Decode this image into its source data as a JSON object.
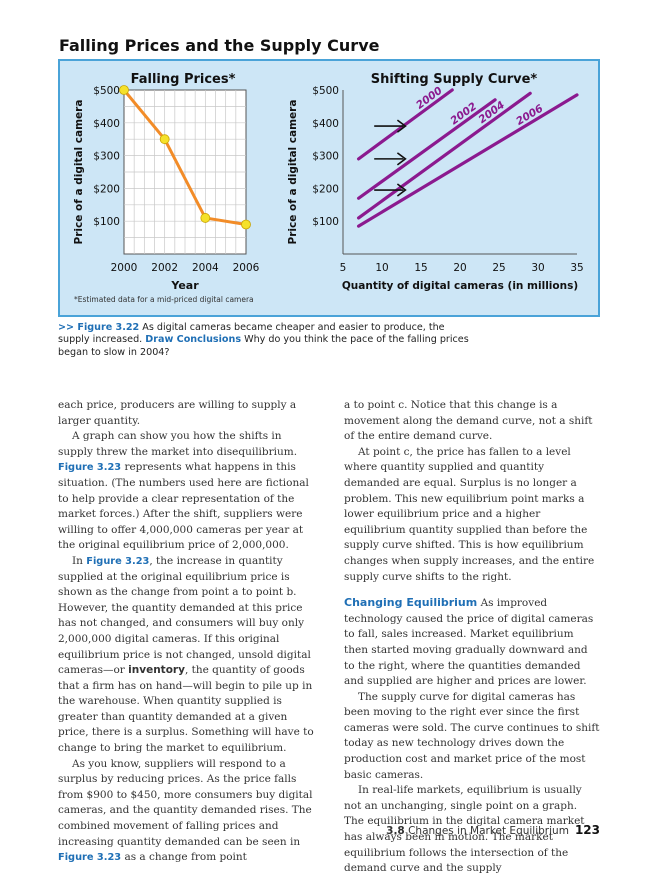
{
  "figure": {
    "title": "Falling Prices and the Supply Curve",
    "note": "*Estimated data for a mid-priced digital camera"
  },
  "chart_data": [
    {
      "type": "line",
      "title": "Falling Prices*",
      "xlabel": "Year",
      "ylabel": "Price of a digital camera",
      "x": [
        2000,
        2002,
        2004,
        2006
      ],
      "x_tick_labels": [
        "2000",
        "2002",
        "2004",
        "2006"
      ],
      "y_tick_labels": [
        "$500",
        "$400",
        "$300",
        "$200",
        "$100"
      ],
      "xlim": [
        2000,
        2006
      ],
      "ylim": [
        0,
        500
      ],
      "grid": true,
      "series": [
        {
          "x": [
            2000,
            2002,
            2004,
            2006
          ],
          "values": [
            500,
            350,
            110,
            90
          ]
        }
      ],
      "colors": {
        "line": "#f28c28",
        "marker": "#f5e12a"
      }
    },
    {
      "type": "line",
      "title": "Shifting Supply Curve*",
      "xlabel": "Quantity of digital cameras (in millions)",
      "ylabel": "Price of a digital camera",
      "x_tick_labels": [
        "5",
        "10",
        "15",
        "20",
        "25",
        "30",
        "35"
      ],
      "y_tick_labels": [
        "$500",
        "$400",
        "$300",
        "$200",
        "$100"
      ],
      "xlim": [
        5,
        35
      ],
      "ylim": [
        0,
        500
      ],
      "grid": false,
      "series": [
        {
          "name": "2000",
          "x": [
            7,
            19
          ],
          "values": [
            290,
            500
          ]
        },
        {
          "name": "2002",
          "x": [
            7,
            24.5
          ],
          "values": [
            170,
            470
          ]
        },
        {
          "name": "2004",
          "x": [
            7,
            29
          ],
          "values": [
            110,
            490
          ]
        },
        {
          "name": "2006",
          "x": [
            7,
            35
          ],
          "values": [
            85,
            485
          ]
        }
      ],
      "arrows": [
        {
          "y": 390,
          "x_from": 9,
          "x_to": 13
        },
        {
          "y": 290,
          "x_from": 9,
          "x_to": 13
        },
        {
          "y": 195,
          "x_from": 9,
          "x_to": 13
        }
      ],
      "colors": {
        "line": "#8b1a8f",
        "arrow": "#111111"
      }
    }
  ],
  "caption": {
    "prefix": ">> ",
    "figref": "Figure 3.22",
    "text1": " As digital cameras became cheaper and easier to produce, the supply increased. ",
    "dc_label": "Draw Conclusions",
    "text2": "  Why do you think the pace of the falling prices began to slow in 2004?"
  },
  "left": {
    "p1": "each price, producers are willing to supply a larger quantity.",
    "p2a": "A graph can show you how the shifts in supply threw the market into disequilibrium. ",
    "p2ref": "Figure 3.23",
    "p2b": " represents what happens in this situation. (The numbers used here are fictional to help provide a clear representation of the market forces.) After the shift, suppliers were willing to offer 4,000,000 cameras per year at the original equilibrium price of 2,000,000.",
    "p3a": "In ",
    "p3ref": "Figure 3.23",
    "p3b": ", the increase in quantity supplied at the original equilibrium price is shown as the change from point a to point b. However, the quantity demanded at this price has not changed, and consumers will buy only 2,000,000 digital cameras. If this original equilibrium price is not changed, unsold digital cameras—or ",
    "p3term": "inventory",
    "p3c": ", the quantity of goods that a firm has on hand—will begin to pile up in the warehouse. When quantity supplied is greater than quantity demanded at a given price, there is a surplus. Something will have to change to bring the market to equilibrium.",
    "p4a": "As you know, suppliers will respond to a surplus by reducing prices. As the price falls from $900 to $450, more consumers buy digital cameras, and the quantity demanded rises. The combined movement of falling prices and increasing quantity demanded can be seen in ",
    "p4ref": "Figure 3.23",
    "p4b": " as a change from point"
  },
  "right": {
    "p1": "a to point c. Notice that this change is a movement along the demand curve, not a shift of the entire demand curve.",
    "p2": "At point c, the price has fallen to a level where quantity supplied and quantity demanded are equal. Surplus is no longer a problem. This new equilibrium point marks a lower equilibrium price and a higher equilibrium quantity supplied than before the supply curve shifted. This is how equilibrium changes when supply increases, and the entire supply curve shifts to the right.",
    "head": "Changing Equilibrium",
    "p3": " As improved technology caused the price of digital cameras to fall, sales increased. Market equilibrium then started moving gradually downward and to the right, where the quantities demanded and supplied are higher and prices are lower.",
    "p4": "The supply curve for digital cameras has been moving to the right ever since the first cameras were sold. The curve continues to shift today as new technology drives down the production cost and market price of the most basic cameras.",
    "p5": "In real-life markets, equilibrium is usually not an unchanging, single point on a graph. The equilibrium in the digital camera market has always been in motion. The market equilibrium follows the intersection of the demand curve and the supply"
  },
  "footer": {
    "section": "3.8",
    "section_title": " Changes in Market Equilibrium",
    "page": "123"
  }
}
